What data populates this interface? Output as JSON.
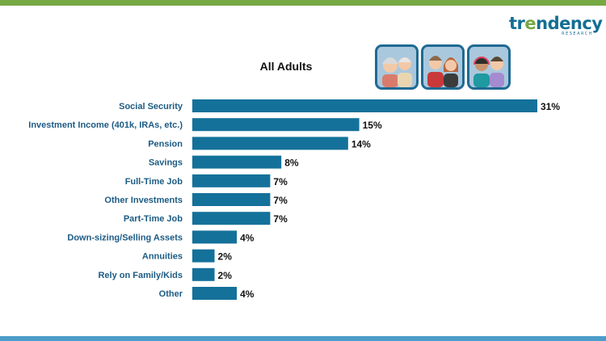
{
  "brand": {
    "logo_text_pre": "tr",
    "logo_text_accent": "e",
    "logo_text_post": "ndency",
    "logo_subtext": "RESEARCH",
    "colors": {
      "green": "#76a844",
      "blue": "#136e93",
      "bottom_bar": "#4b9cc9"
    }
  },
  "chart_data": {
    "type": "bar",
    "orientation": "horizontal",
    "title": "All Adults",
    "categories": [
      "Social Security",
      "Investment Income (401k, IRAs, etc.)",
      "Pension",
      "Savings",
      "Full-Time Job",
      "Other Investments",
      "Part-Time Job",
      "Down-sizing/Selling Assets",
      "Annuities",
      "Rely on Family/Kids",
      "Other"
    ],
    "values": [
      31,
      15,
      14,
      8,
      7,
      7,
      7,
      4,
      2,
      2,
      4
    ],
    "value_labels": [
      "31%",
      "15%",
      "14%",
      "8%",
      "7%",
      "7%",
      "7%",
      "4%",
      "2%",
      "2%",
      "4%"
    ],
    "unit": "%",
    "bar_color": "#14719a",
    "grid": false,
    "legend": "none"
  },
  "icons": [
    "older-adults-icon",
    "middle-age-adults-icon",
    "young-adults-icon"
  ]
}
